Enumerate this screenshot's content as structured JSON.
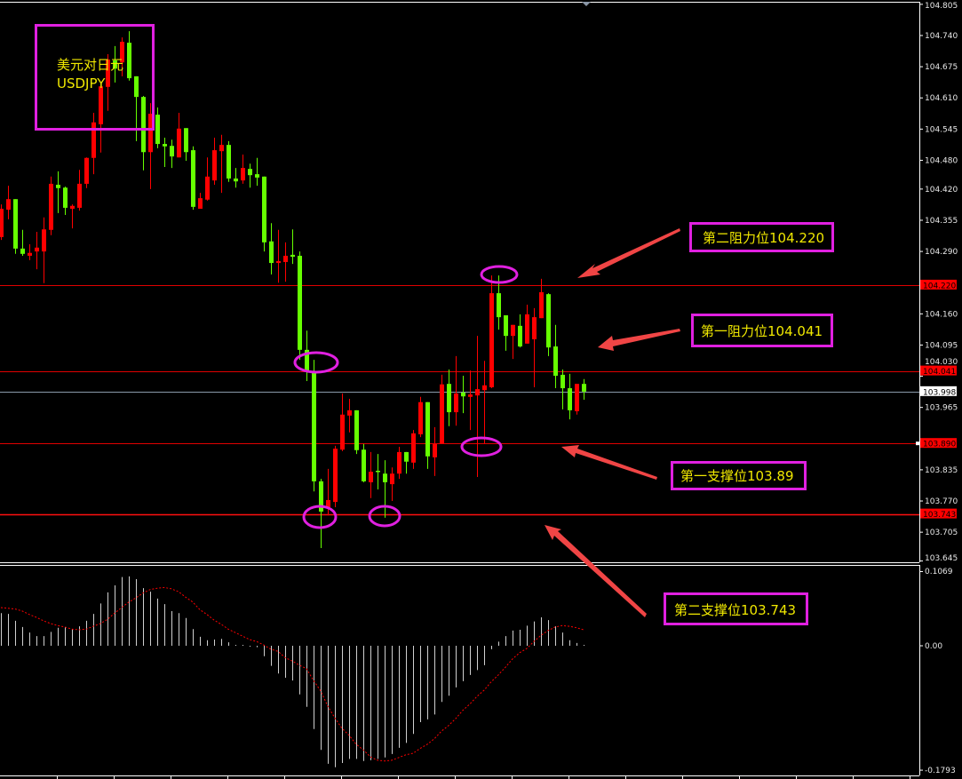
{
  "symbol_box": {
    "name_cn": "美元对日元",
    "symbol": "USDJPY"
  },
  "annotations": [
    {
      "text": "第二阻力位104.220",
      "level": 104.22
    },
    {
      "text": "第一阻力位104.041",
      "level": 104.041
    },
    {
      "text": "第一支撑位103.89",
      "level": 103.89
    },
    {
      "text": "第二支撑位103.743",
      "level": 103.743
    }
  ],
  "level_tags": [
    {
      "text": "104.220",
      "value": 104.22,
      "kind": "level"
    },
    {
      "text": "104.041",
      "value": 104.041,
      "kind": "level"
    },
    {
      "text": "103.998",
      "value": 103.998,
      "kind": "current"
    },
    {
      "text": "103.890",
      "value": 103.89,
      "kind": "level"
    },
    {
      "text": "103.743",
      "value": 103.743,
      "kind": "level"
    }
  ],
  "colors": {
    "background": "#000000",
    "bull_candle": "#ff0000",
    "bear_candle": "#66ff00",
    "level_line": "#e00000",
    "current_line": "#8a9aaa",
    "annotation_box": "#e020e0",
    "annotation_text": "#f0e800",
    "arrow": "#f04545",
    "histogram": "#d0d0d0",
    "signal": "#ff0000"
  },
  "chart_data": [
    {
      "type": "candlestick",
      "title": "",
      "ylim": [
        103.645,
        104.805
      ],
      "grid": false,
      "y_ticks": [
        "104.805",
        "104.740",
        "104.675",
        "104.610",
        "104.545",
        "104.480",
        "104.420",
        "104.355",
        "104.290",
        "104.160",
        "104.095",
        "104.030",
        "103.965",
        "103.835",
        "103.770",
        "103.705",
        "103.645"
      ],
      "horizontal_lines": [
        104.22,
        104.041,
        103.998,
        103.89,
        103.743
      ],
      "ohlc": [
        [
          104.32,
          104.388,
          104.314,
          104.379
        ],
        [
          104.377,
          104.427,
          104.357,
          104.399
        ],
        [
          104.399,
          104.399,
          104.285,
          104.296
        ],
        [
          104.296,
          104.335,
          104.281,
          104.285
        ],
        [
          104.281,
          104.305,
          104.272,
          104.287
        ],
        [
          104.29,
          104.331,
          104.253,
          104.298
        ],
        [
          104.29,
          104.361,
          104.224,
          104.336
        ],
        [
          104.335,
          104.446,
          104.324,
          104.431
        ],
        [
          104.429,
          104.457,
          104.37,
          104.422
        ],
        [
          104.423,
          104.425,
          104.366,
          104.381
        ],
        [
          104.379,
          104.388,
          104.338,
          104.385
        ],
        [
          104.381,
          104.46,
          104.375,
          104.431
        ],
        [
          104.431,
          104.486,
          104.422,
          104.485
        ],
        [
          104.485,
          104.579,
          104.451,
          104.559
        ],
        [
          104.555,
          104.634,
          104.496,
          104.634
        ],
        [
          104.633,
          104.701,
          104.583,
          104.69
        ],
        [
          104.688,
          104.718,
          104.642,
          104.671
        ],
        [
          104.684,
          104.736,
          104.655,
          104.727
        ],
        [
          104.725,
          104.749,
          104.646,
          104.651
        ],
        [
          104.655,
          104.655,
          104.52,
          104.612
        ],
        [
          104.612,
          104.614,
          104.459,
          104.497
        ],
        [
          104.497,
          104.599,
          104.42,
          104.577
        ],
        [
          104.575,
          104.59,
          104.505,
          104.514
        ],
        [
          104.514,
          104.527,
          104.466,
          104.509
        ],
        [
          104.51,
          104.523,
          104.464,
          104.488
        ],
        [
          104.486,
          104.579,
          104.486,
          104.546
        ],
        [
          104.547,
          104.547,
          104.479,
          104.497
        ],
        [
          104.501,
          104.509,
          104.377,
          104.383
        ],
        [
          104.379,
          104.412,
          104.379,
          104.401
        ],
        [
          104.398,
          104.486,
          104.396,
          104.446
        ],
        [
          104.438,
          104.527,
          104.429,
          104.501
        ],
        [
          104.499,
          104.533,
          104.412,
          104.512
        ],
        [
          104.512,
          104.52,
          104.435,
          104.442
        ],
        [
          104.442,
          104.464,
          104.423,
          104.436
        ],
        [
          104.438,
          104.492,
          104.431,
          104.464
        ],
        [
          104.462,
          104.473,
          104.423,
          104.449
        ],
        [
          104.451,
          104.485,
          104.427,
          104.444
        ],
        [
          104.446,
          104.446,
          104.29,
          104.309
        ],
        [
          104.311,
          104.349,
          104.242,
          104.266
        ],
        [
          104.266,
          104.335,
          104.225,
          104.27
        ],
        [
          104.268,
          104.309,
          104.227,
          104.281
        ],
        [
          104.283,
          104.336,
          104.264,
          104.279
        ],
        [
          104.281,
          104.29,
          104.064,
          104.085
        ],
        [
          104.085,
          104.125,
          104.02,
          104.042
        ],
        [
          104.04,
          104.064,
          103.79,
          103.811
        ],
        [
          103.811,
          103.816,
          103.672,
          103.748
        ],
        [
          103.757,
          103.837,
          103.74,
          103.772
        ],
        [
          103.768,
          103.885,
          103.757,
          103.879
        ],
        [
          103.877,
          103.994,
          103.874,
          103.95
        ],
        [
          103.948,
          103.983,
          103.913,
          103.959
        ],
        [
          103.959,
          103.959,
          103.868,
          103.876
        ],
        [
          103.877,
          103.889,
          103.809,
          103.811
        ],
        [
          103.809,
          103.872,
          103.776,
          103.831
        ],
        [
          103.833,
          103.868,
          103.794,
          103.831
        ],
        [
          103.827,
          103.855,
          103.735,
          103.809
        ],
        [
          103.805,
          103.84,
          103.77,
          103.827
        ],
        [
          103.827,
          103.883,
          103.816,
          103.872
        ],
        [
          103.872,
          103.872,
          103.827,
          103.852
        ],
        [
          103.85,
          103.918,
          103.837,
          103.911
        ],
        [
          103.909,
          103.987,
          103.903,
          103.976
        ],
        [
          103.976,
          103.976,
          103.837,
          103.863
        ],
        [
          103.861,
          103.924,
          103.822,
          103.889
        ],
        [
          103.89,
          104.033,
          103.89,
          104.013
        ],
        [
          104.014,
          104.044,
          103.926,
          103.955
        ],
        [
          103.955,
          104.072,
          103.927,
          103.994
        ],
        [
          103.996,
          104.031,
          103.953,
          103.988
        ],
        [
          103.987,
          104.042,
          103.918,
          103.992
        ],
        [
          103.99,
          104.114,
          103.82,
          104.003
        ],
        [
          104.001,
          104.062,
          103.89,
          104.011
        ],
        [
          104.007,
          104.24,
          104.005,
          104.203
        ],
        [
          104.203,
          104.24,
          104.127,
          104.153
        ],
        [
          104.157,
          104.157,
          104.083,
          104.114
        ],
        [
          104.114,
          104.137,
          104.066,
          104.137
        ],
        [
          104.135,
          104.159,
          104.09,
          104.092
        ],
        [
          104.098,
          104.179,
          104.098,
          104.159
        ],
        [
          104.107,
          104.172,
          104.007,
          104.153
        ],
        [
          104.151,
          104.233,
          104.151,
          104.205
        ],
        [
          104.201,
          104.203,
          104.072,
          104.09
        ],
        [
          104.092,
          104.137,
          104.005,
          104.031
        ],
        [
          104.033,
          104.044,
          103.961,
          104.005
        ],
        [
          104.005,
          104.035,
          103.94,
          103.959
        ],
        [
          103.957,
          104.014,
          103.95,
          104.014
        ],
        [
          104.014,
          104.024,
          103.981,
          103.998
        ]
      ]
    },
    {
      "type": "bar+line",
      "title": "",
      "ylim": [
        -0.1793,
        0.1069
      ],
      "y_ticks": [
        "0.1069",
        "0.00",
        "-0.1793"
      ],
      "histogram": [
        0.047,
        0.046,
        0.036,
        0.027,
        0.019,
        0.014,
        0.014,
        0.02,
        0.026,
        0.027,
        0.024,
        0.028,
        0.036,
        0.046,
        0.061,
        0.077,
        0.087,
        0.099,
        0.1,
        0.096,
        0.083,
        0.078,
        0.068,
        0.06,
        0.05,
        0.047,
        0.04,
        0.024,
        0.013,
        0.008,
        0.009,
        0.01,
        0.005,
        0.001,
        0.0,
        -0.001,
        -0.002,
        -0.015,
        -0.029,
        -0.04,
        -0.046,
        -0.05,
        -0.07,
        -0.088,
        -0.12,
        -0.15,
        -0.17,
        -0.175,
        -0.169,
        -0.163,
        -0.163,
        -0.166,
        -0.165,
        -0.163,
        -0.161,
        -0.156,
        -0.147,
        -0.14,
        -0.127,
        -0.11,
        -0.106,
        -0.099,
        -0.081,
        -0.072,
        -0.06,
        -0.051,
        -0.042,
        -0.035,
        -0.028,
        -0.005,
        0.006,
        0.014,
        0.022,
        0.023,
        0.029,
        0.035,
        0.041,
        0.037,
        0.028,
        0.019,
        0.008,
        0.004,
        0.001
      ],
      "signal": [
        0.055,
        0.054,
        0.053,
        0.05,
        0.045,
        0.041,
        0.036,
        0.032,
        0.029,
        0.027,
        0.024,
        0.023,
        0.024,
        0.028,
        0.032,
        0.038,
        0.047,
        0.055,
        0.063,
        0.069,
        0.076,
        0.081,
        0.083,
        0.084,
        0.082,
        0.078,
        0.07,
        0.063,
        0.052,
        0.045,
        0.037,
        0.031,
        0.024,
        0.019,
        0.014,
        0.009,
        0.006,
        0.001,
        -0.005,
        -0.008,
        -0.017,
        -0.022,
        -0.028,
        -0.033,
        -0.05,
        -0.065,
        -0.087,
        -0.104,
        -0.119,
        -0.129,
        -0.142,
        -0.15,
        -0.16,
        -0.165,
        -0.166,
        -0.165,
        -0.161,
        -0.157,
        -0.155,
        -0.148,
        -0.142,
        -0.134,
        -0.123,
        -0.115,
        -0.105,
        -0.093,
        -0.084,
        -0.073,
        -0.064,
        -0.052,
        -0.042,
        -0.031,
        -0.019,
        -0.01,
        -0.004,
        0.006,
        0.015,
        0.022,
        0.027,
        0.029,
        0.028,
        0.026,
        0.023
      ]
    }
  ]
}
